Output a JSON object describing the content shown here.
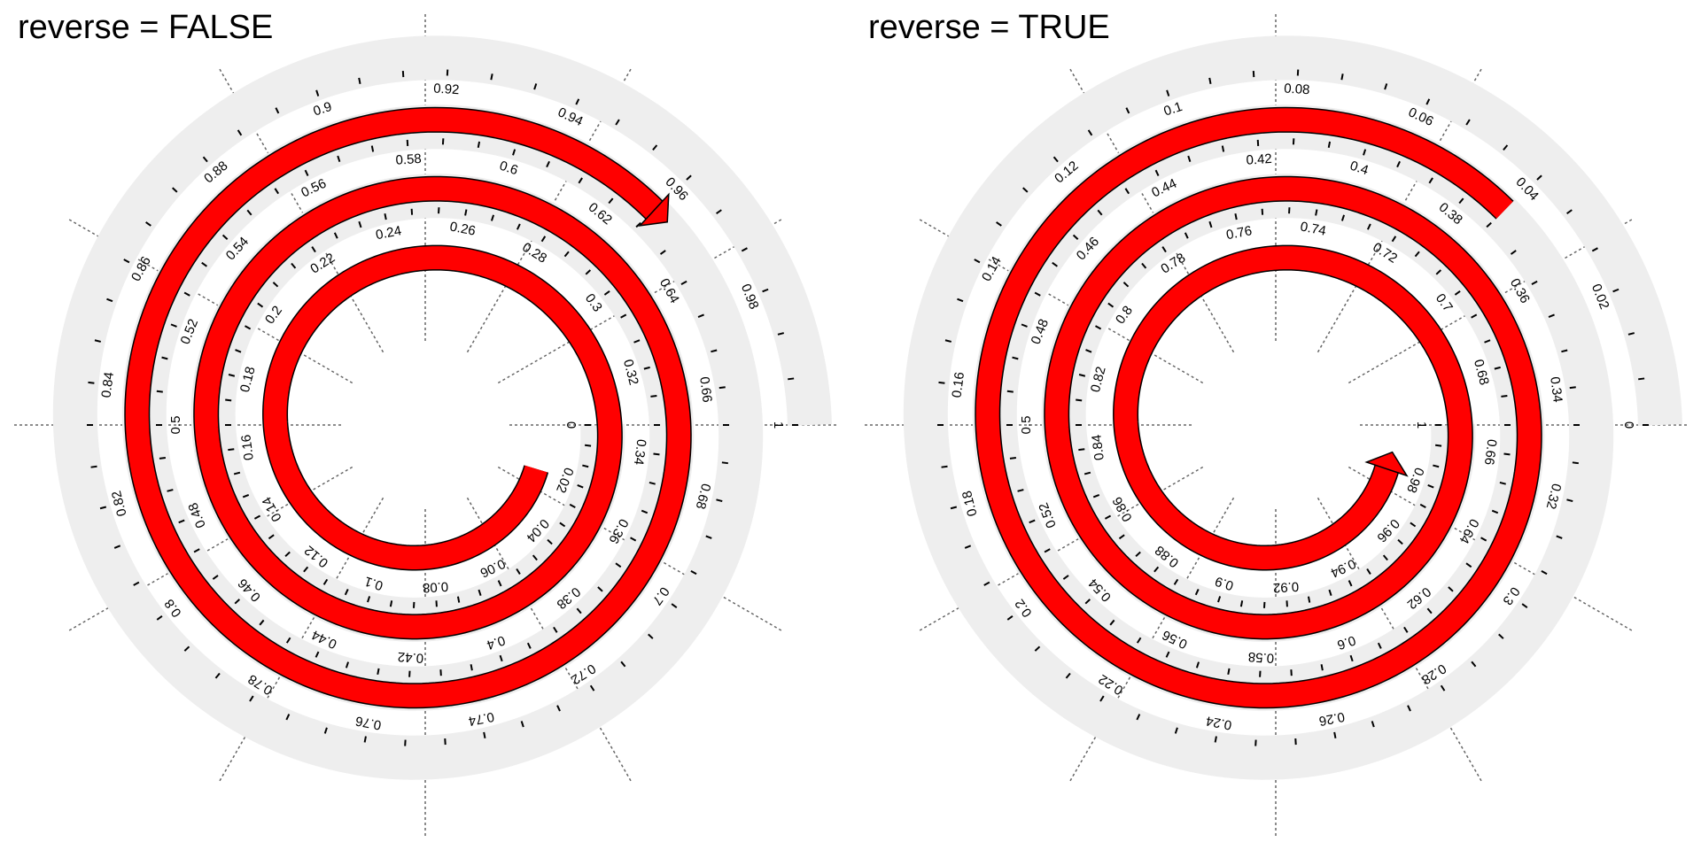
{
  "panels": [
    {
      "title": "reverse = FALSE",
      "reverse": false,
      "labels": {
        "inner": [
          "0",
          "0.02",
          "0.04",
          "0.06",
          "0.08",
          "0.1",
          "0.12",
          "0.14",
          "0.16",
          "0.18",
          "0.2",
          "0.22",
          "0.24",
          "0.26",
          "0.28",
          "0.3",
          "0.32",
          "0.34",
          "0.36",
          "0.38",
          "0.4",
          "0.42",
          "0.44",
          "0.46",
          "0.48",
          "0.5",
          "0.52",
          "0.54",
          "0.56",
          "0.58",
          "0.6",
          "0.62",
          "0.64",
          "0.66",
          "0.68",
          "0.7",
          "0.72",
          "0.74",
          "0.76",
          "0.78",
          "0.8",
          "0.82",
          "0.84",
          "0.86",
          "0.88",
          "0.9",
          "0.92",
          "0.94",
          "0.96",
          "0.98",
          "1"
        ]
      }
    },
    {
      "title": "reverse = TRUE",
      "reverse": true,
      "labels": {
        "inner": [
          "1",
          "0.98",
          "0.96",
          "0.94",
          "0.92",
          "0.9",
          "0.88",
          "0.86",
          "0.84",
          "0.82",
          "0.8",
          "0.78",
          "0.76",
          "0.74",
          "0.72",
          "0.7",
          "0.68",
          "0.66",
          "0.64",
          "0.62",
          "0.6",
          "0.58",
          "0.56",
          "0.54",
          "0.52",
          "0.5",
          "0.48",
          "0.46",
          "0.44",
          "0.42",
          "0.4",
          "0.38",
          "0.36",
          "0.34",
          "0.32",
          "0.3",
          "0.28",
          "0.26",
          "0.24",
          "0.22",
          "0.2",
          "0.18",
          "0.16",
          "0.14",
          "0.12",
          "0.1",
          "0.08",
          "0.06",
          "0.04",
          "0.02",
          "0"
        ]
      }
    }
  ],
  "colors": {
    "arrow_fill": "#FF0000",
    "arrow_stroke": "#000000",
    "track": "#EEEEEE",
    "grid": "#666666"
  }
}
